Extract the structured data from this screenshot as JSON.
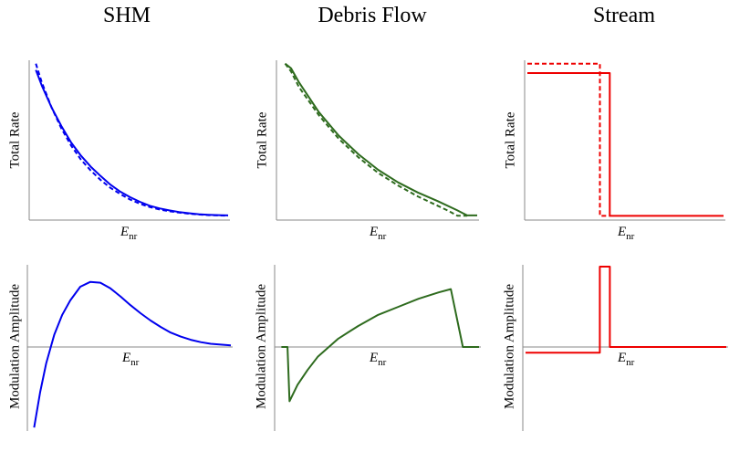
{
  "columns": [
    "SHM",
    "Debris Flow",
    "Stream"
  ],
  "colors": {
    "shm": "#0000ee",
    "debris": "#2e6b1e",
    "stream": "#ee0000",
    "axis": "#888888"
  },
  "chart_data": [
    {
      "type": "line",
      "panel": "shm-total-rate",
      "title": "SHM",
      "xlabel": "E_nr",
      "ylabel": "Total Rate",
      "xlim": [
        0,
        1
      ],
      "ylim": [
        0,
        1
      ],
      "series": [
        {
          "name": "solid",
          "style": "solid",
          "x": [
            0.02,
            0.05,
            0.1,
            0.15,
            0.2,
            0.25,
            0.3,
            0.35,
            0.4,
            0.45,
            0.5,
            0.55,
            0.6,
            0.65,
            0.7,
            0.75,
            0.8,
            0.85,
            0.9,
            0.95,
            1.0
          ],
          "y": [
            0.95,
            0.85,
            0.71,
            0.59,
            0.485,
            0.4,
            0.33,
            0.27,
            0.215,
            0.17,
            0.135,
            0.105,
            0.08,
            0.063,
            0.05,
            0.04,
            0.032,
            0.026,
            0.022,
            0.02,
            0.018
          ]
        },
        {
          "name": "dashed",
          "style": "dashed",
          "x": [
            0.02,
            0.05,
            0.1,
            0.15,
            0.2,
            0.25,
            0.3,
            0.35,
            0.4,
            0.45,
            0.5,
            0.55,
            0.6,
            0.65,
            0.7,
            0.75,
            0.8,
            0.85,
            0.9,
            0.95,
            1.0
          ],
          "y": [
            0.99,
            0.87,
            0.71,
            0.575,
            0.465,
            0.375,
            0.305,
            0.245,
            0.195,
            0.155,
            0.12,
            0.093,
            0.072,
            0.056,
            0.045,
            0.036,
            0.029,
            0.024,
            0.02,
            0.018,
            0.016
          ]
        }
      ]
    },
    {
      "type": "line",
      "panel": "debris-total-rate",
      "title": "Debris Flow",
      "xlabel": "E_nr",
      "ylabel": "Total Rate",
      "xlim": [
        0,
        1
      ],
      "ylim": [
        0,
        1
      ],
      "series": [
        {
          "name": "solid",
          "style": "solid",
          "x": [
            0.03,
            0.06,
            0.1,
            0.2,
            0.3,
            0.4,
            0.5,
            0.6,
            0.7,
            0.8,
            0.9,
            0.95,
            1.0
          ],
          "y": [
            0.99,
            0.96,
            0.87,
            0.68,
            0.53,
            0.41,
            0.31,
            0.23,
            0.165,
            0.11,
            0.05,
            0.018,
            0.018
          ]
        },
        {
          "name": "dashed",
          "style": "dashed",
          "x": [
            0.03,
            0.06,
            0.1,
            0.2,
            0.3,
            0.4,
            0.5,
            0.6,
            0.7,
            0.8,
            0.85,
            0.9,
            0.95
          ],
          "y": [
            0.99,
            0.94,
            0.84,
            0.66,
            0.51,
            0.39,
            0.29,
            0.21,
            0.14,
            0.08,
            0.05,
            0.016,
            0.016
          ]
        }
      ]
    },
    {
      "type": "line",
      "panel": "stream-total-rate",
      "title": "Stream",
      "xlabel": "E_nr",
      "ylabel": "Total Rate",
      "xlim": [
        0,
        1
      ],
      "ylim": [
        0,
        1
      ],
      "series": [
        {
          "name": "solid",
          "style": "solid",
          "x": [
            0.0,
            0.42,
            0.42,
            1.0
          ],
          "y": [
            0.93,
            0.93,
            0.015,
            0.015
          ]
        },
        {
          "name": "dashed",
          "style": "dashed",
          "x": [
            0.0,
            0.37,
            0.37,
            0.42
          ],
          "y": [
            0.99,
            0.99,
            0.015,
            0.015
          ]
        }
      ]
    },
    {
      "type": "line",
      "panel": "shm-modulation",
      "title": "SHM",
      "xlabel": "E_nr",
      "ylabel": "Modulation Amplitude",
      "xlim": [
        0,
        1
      ],
      "ylim": [
        -1,
        1
      ],
      "series": [
        {
          "name": "solid",
          "style": "solid",
          "x": [
            0.02,
            0.05,
            0.08,
            0.12,
            0.16,
            0.2,
            0.25,
            0.3,
            0.35,
            0.4,
            0.45,
            0.5,
            0.55,
            0.6,
            0.65,
            0.7,
            0.75,
            0.8,
            0.85,
            0.9,
            0.95,
            1.0
          ],
          "y": [
            -0.98,
            -0.55,
            -0.2,
            0.15,
            0.4,
            0.58,
            0.75,
            0.81,
            0.8,
            0.73,
            0.63,
            0.52,
            0.42,
            0.33,
            0.25,
            0.18,
            0.13,
            0.09,
            0.06,
            0.04,
            0.03,
            0.02
          ]
        }
      ]
    },
    {
      "type": "line",
      "panel": "debris-modulation",
      "title": "Debris Flow",
      "xlabel": "E_nr",
      "ylabel": "Modulation Amplitude",
      "xlim": [
        0,
        1
      ],
      "ylim": [
        -1,
        1
      ],
      "series": [
        {
          "name": "solid",
          "style": "solid",
          "x": [
            0.02,
            0.05,
            0.06,
            0.1,
            0.15,
            0.2,
            0.3,
            0.4,
            0.5,
            0.6,
            0.7,
            0.8,
            0.86,
            0.92,
            1.0
          ],
          "y": [
            0.0,
            0.0,
            -0.66,
            -0.46,
            -0.28,
            -0.12,
            0.1,
            0.26,
            0.4,
            0.5,
            0.6,
            0.68,
            0.72,
            0.0,
            0.0
          ]
        }
      ]
    },
    {
      "type": "line",
      "panel": "stream-modulation",
      "title": "Stream",
      "xlabel": "E_nr",
      "ylabel": "Modulation Amplitude",
      "xlim": [
        0,
        1
      ],
      "ylim": [
        -1,
        1
      ],
      "series": [
        {
          "name": "solid",
          "style": "solid",
          "x": [
            0.0,
            0.37,
            0.37,
            0.42,
            0.42,
            1.0
          ],
          "y": [
            -0.07,
            -0.07,
            1.0,
            1.0,
            0.0,
            0.0
          ]
        }
      ]
    }
  ]
}
